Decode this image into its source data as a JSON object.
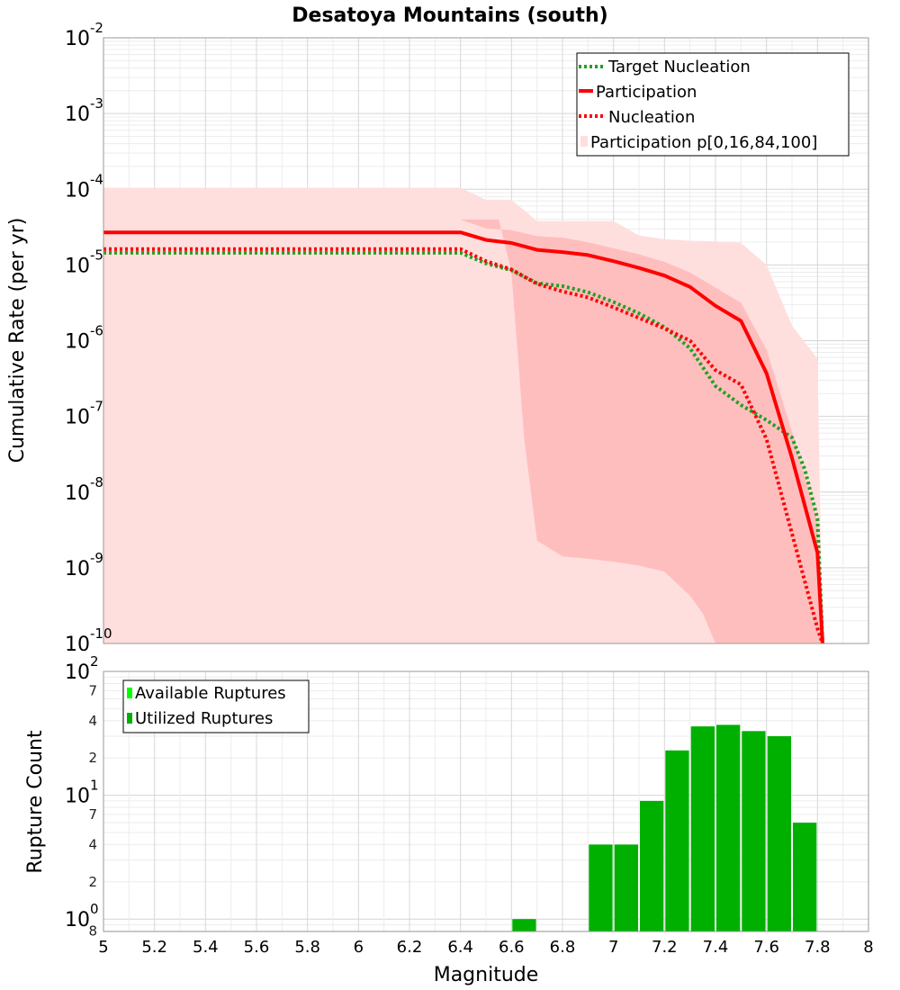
{
  "chart_data": [
    {
      "type": "line",
      "title": "Desatoya Mountains (south)",
      "xlabel": "Magnitude",
      "ylabel": "Cumulative Rate (per yr)",
      "xlim": [
        5,
        8
      ],
      "ylim_log10": [
        -10,
        -2
      ],
      "yscale": "log",
      "x_ticks": [
        "5",
        "5.2",
        "5.4",
        "5.6",
        "5.8",
        "6",
        "6.2",
        "6.4",
        "6.6",
        "6.8",
        "7",
        "7.2",
        "7.4",
        "7.6",
        "7.8",
        "8"
      ],
      "y_tick_labels": [
        {
          "base": "10",
          "exp": "-2"
        },
        {
          "base": "10",
          "exp": "-3"
        },
        {
          "base": "10",
          "exp": "-4"
        },
        {
          "base": "10",
          "exp": "-5"
        },
        {
          "base": "10",
          "exp": "-6"
        },
        {
          "base": "10",
          "exp": "-7"
        },
        {
          "base": "10",
          "exp": "-8"
        },
        {
          "base": "10",
          "exp": "-9"
        },
        {
          "base": "10",
          "exp": "-10"
        }
      ],
      "legend": [
        {
          "label": "Target Nucleation",
          "style": "dotted",
          "color": "#22a022"
        },
        {
          "label": "Participation",
          "style": "solid",
          "color": "#ff0000"
        },
        {
          "label": "Nucleation",
          "style": "dotted",
          "color": "#ff0000"
        },
        {
          "label": "Participation p[0,16,84,100]",
          "style": "band",
          "color": "#ffdede"
        }
      ],
      "series": [
        {
          "name": "Target Nucleation",
          "color": "#22a022",
          "dash": "dotted",
          "x": [
            5.0,
            6.4,
            6.5,
            6.6,
            6.7,
            6.8,
            6.9,
            7.0,
            7.1,
            7.2,
            7.3,
            7.4,
            7.5,
            7.6,
            7.7,
            7.75,
            7.8,
            7.82
          ],
          "log10y": [
            -4.84,
            -4.84,
            -4.98,
            -5.07,
            -5.24,
            -5.28,
            -5.36,
            -5.49,
            -5.64,
            -5.82,
            -6.1,
            -6.6,
            -6.85,
            -7.05,
            -7.28,
            -7.7,
            -8.35,
            -10.0
          ]
        },
        {
          "name": "Participation",
          "color": "#ff0000",
          "dash": "solid",
          "x": [
            5.0,
            6.4,
            6.5,
            6.6,
            6.7,
            6.8,
            6.9,
            7.0,
            7.1,
            7.2,
            7.3,
            7.4,
            7.5,
            7.6,
            7.7,
            7.8,
            7.82
          ],
          "log10y": [
            -4.57,
            -4.57,
            -4.67,
            -4.71,
            -4.8,
            -4.83,
            -4.87,
            -4.95,
            -5.04,
            -5.14,
            -5.29,
            -5.54,
            -5.74,
            -6.43,
            -7.55,
            -8.8,
            -10.0
          ]
        },
        {
          "name": "Nucleation",
          "color": "#ff0000",
          "dash": "dotted",
          "x": [
            5.0,
            6.4,
            6.5,
            6.6,
            6.7,
            6.8,
            6.9,
            7.0,
            7.1,
            7.2,
            7.3,
            7.4,
            7.5,
            7.6,
            7.7,
            7.8,
            7.82
          ],
          "log10y": [
            -4.79,
            -4.79,
            -4.95,
            -5.06,
            -5.25,
            -5.35,
            -5.43,
            -5.56,
            -5.7,
            -5.84,
            -6.0,
            -6.39,
            -6.58,
            -7.3,
            -8.55,
            -9.8,
            -10.0
          ]
        }
      ],
      "bands": [
        {
          "name": "p0-p100",
          "color": "#ffdede",
          "x": [
            5.0,
            6.4,
            6.5,
            6.6,
            6.7,
            6.8,
            6.9,
            7.0,
            7.1,
            7.2,
            7.3,
            7.4,
            7.5,
            7.6,
            7.7,
            7.8,
            7.82
          ],
          "log10_upper": [
            -3.98,
            -3.98,
            -4.14,
            -4.14,
            -4.42,
            -4.42,
            -4.42,
            -4.42,
            -4.61,
            -4.66,
            -4.68,
            -4.69,
            -4.71,
            -5.0,
            -5.8,
            -6.24,
            -10.0
          ],
          "x_lower": [
            5.0,
            7.4,
            7.55,
            7.65,
            7.72,
            7.74,
            7.82
          ],
          "log10_lower": [
            -10.0,
            -10.0,
            -10.0,
            -10.0,
            -10.0,
            -10.0,
            -10.0
          ]
        },
        {
          "name": "p16-p84",
          "color": "#ffbebe",
          "x": [
            5.0,
            6.4,
            6.5,
            6.6,
            6.7,
            6.8,
            6.9,
            7.0,
            7.1,
            7.2,
            7.3,
            7.4,
            7.5,
            7.6,
            7.7,
            7.8,
            7.82
          ],
          "log10_upper": [
            -4.4,
            -4.4,
            -4.52,
            -4.54,
            -4.62,
            -4.64,
            -4.7,
            -4.78,
            -4.86,
            -4.96,
            -5.1,
            -5.3,
            -5.5,
            -6.12,
            -7.2,
            -8.4,
            -10.0
          ],
          "x_lower": [
            5.0,
            6.55,
            6.6,
            6.65,
            6.7,
            6.8,
            6.9,
            7.0,
            7.1,
            7.2,
            7.3,
            7.35,
            7.4,
            7.5,
            7.82
          ],
          "log10_lower": [
            -4.4,
            -4.4,
            -5.1,
            -7.3,
            -8.64,
            -8.85,
            -8.88,
            -8.92,
            -8.97,
            -9.05,
            -9.37,
            -9.6,
            -10.0,
            -10.0,
            -10.0
          ]
        }
      ]
    },
    {
      "type": "bar",
      "xlabel": "Magnitude",
      "ylabel": "Rupture Count",
      "xlim": [
        5,
        8
      ],
      "ylim_log10": [
        -0.1,
        2
      ],
      "yscale": "log",
      "y_tick_labels": [
        {
          "base": "10",
          "exp": "2"
        },
        {
          "base": "10",
          "exp": "1"
        },
        {
          "base": "10",
          "exp": "0"
        }
      ],
      "y_minor_labels": [
        {
          "label": "7",
          "value": 70
        },
        {
          "label": "4",
          "value": 40
        },
        {
          "label": "2",
          "value": 20
        },
        {
          "label": "7",
          "value": 7
        },
        {
          "label": "4",
          "value": 4
        },
        {
          "label": "2",
          "value": 2
        },
        {
          "label": "8",
          "value": 0.8
        }
      ],
      "legend": [
        {
          "label": "Available Ruptures",
          "color": "#00ff00"
        },
        {
          "label": "Utilized Ruptures",
          "color": "#00b000"
        }
      ],
      "bin_width": 0.1,
      "bin_centers": [
        6.65,
        6.95,
        7.05,
        7.15,
        7.25,
        7.35,
        7.45,
        7.55,
        7.65,
        7.75
      ],
      "values": [
        1,
        4,
        4,
        9,
        23,
        36,
        37,
        33,
        30,
        6
      ]
    }
  ]
}
